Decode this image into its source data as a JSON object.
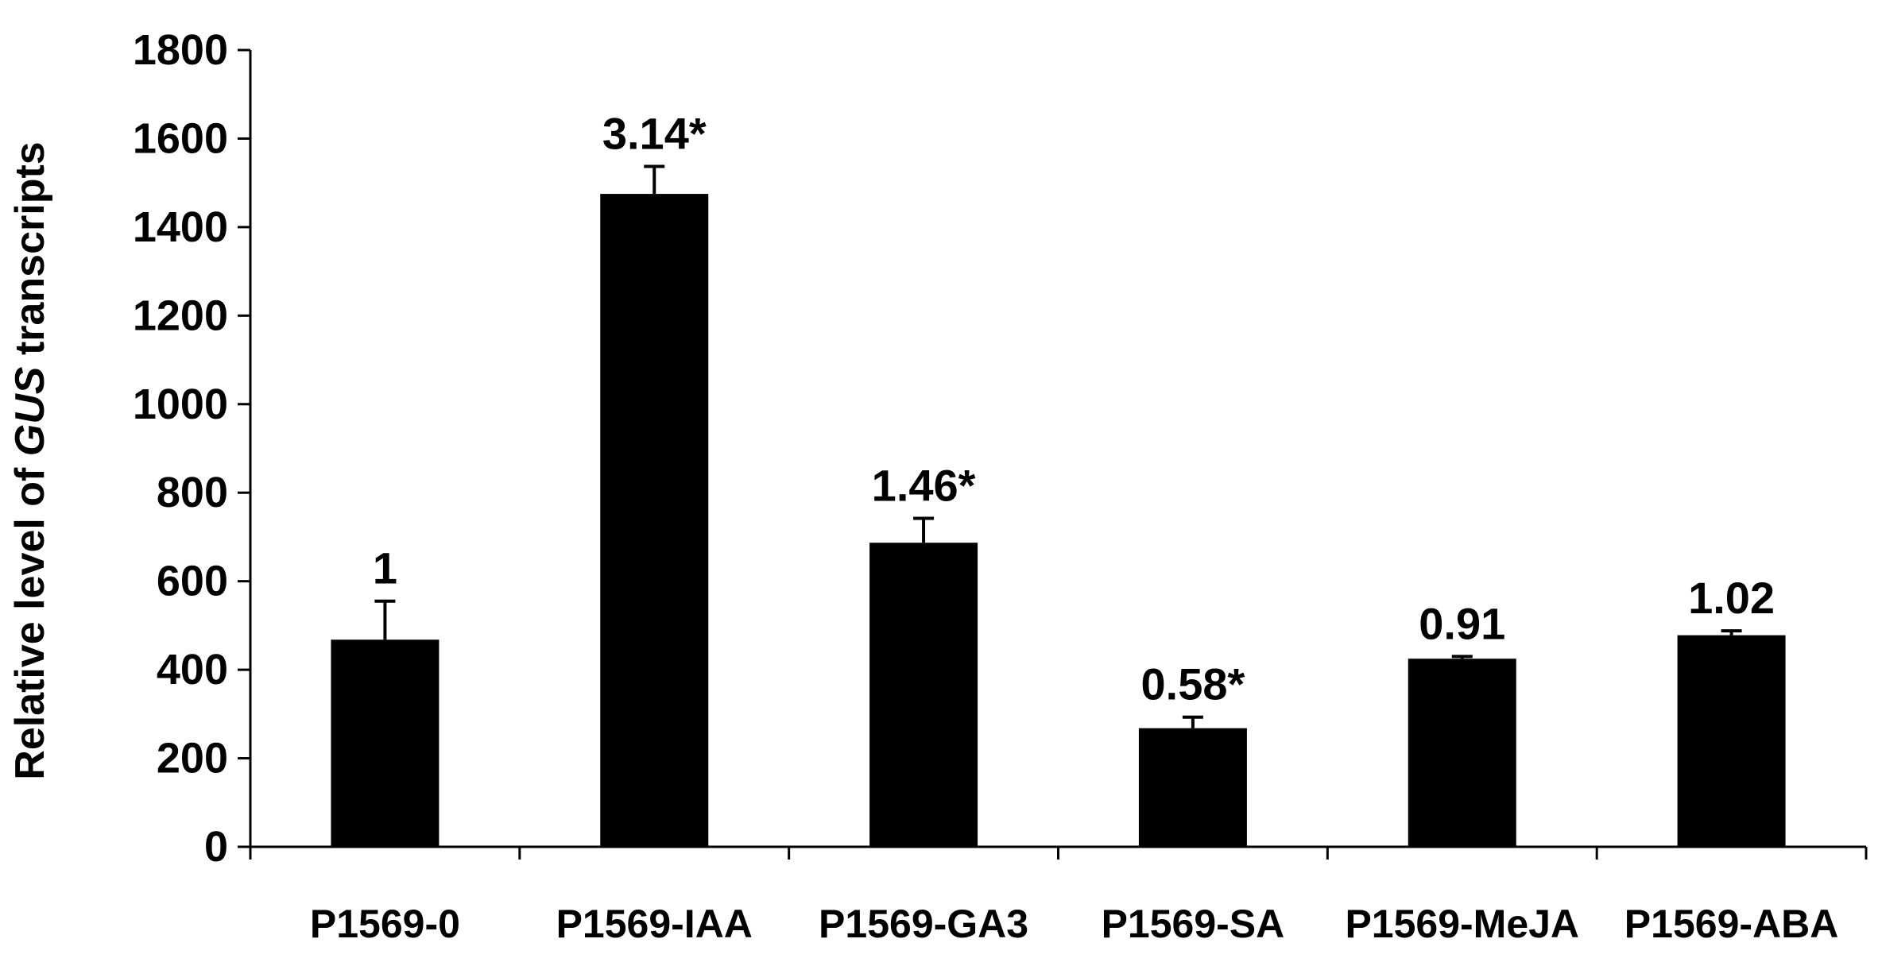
{
  "chart_data": {
    "type": "bar",
    "title": "",
    "xlabel": "",
    "ylabel_prefix": "Relative level of ",
    "ylabel_italic": "GUS",
    "ylabel_suffix": " transcripts",
    "ylim": [
      0,
      1800
    ],
    "yticks": [
      0,
      200,
      400,
      600,
      800,
      1000,
      1200,
      1400,
      1600,
      1800
    ],
    "categories": [
      "P1569-0",
      "P1569-IAA",
      "P1569-GA3",
      "P1569-SA",
      "P1569-MeJA",
      "P1569-ABA"
    ],
    "values": [
      468,
      1475,
      687,
      268,
      425,
      478
    ],
    "errors": [
      87,
      62,
      55,
      25,
      5,
      10
    ],
    "data_labels": [
      "1",
      "3.14*",
      "1.46*",
      "0.58*",
      "0.91",
      "1.02"
    ],
    "bar_color": "#000000",
    "grid": false,
    "legend": "none"
  }
}
